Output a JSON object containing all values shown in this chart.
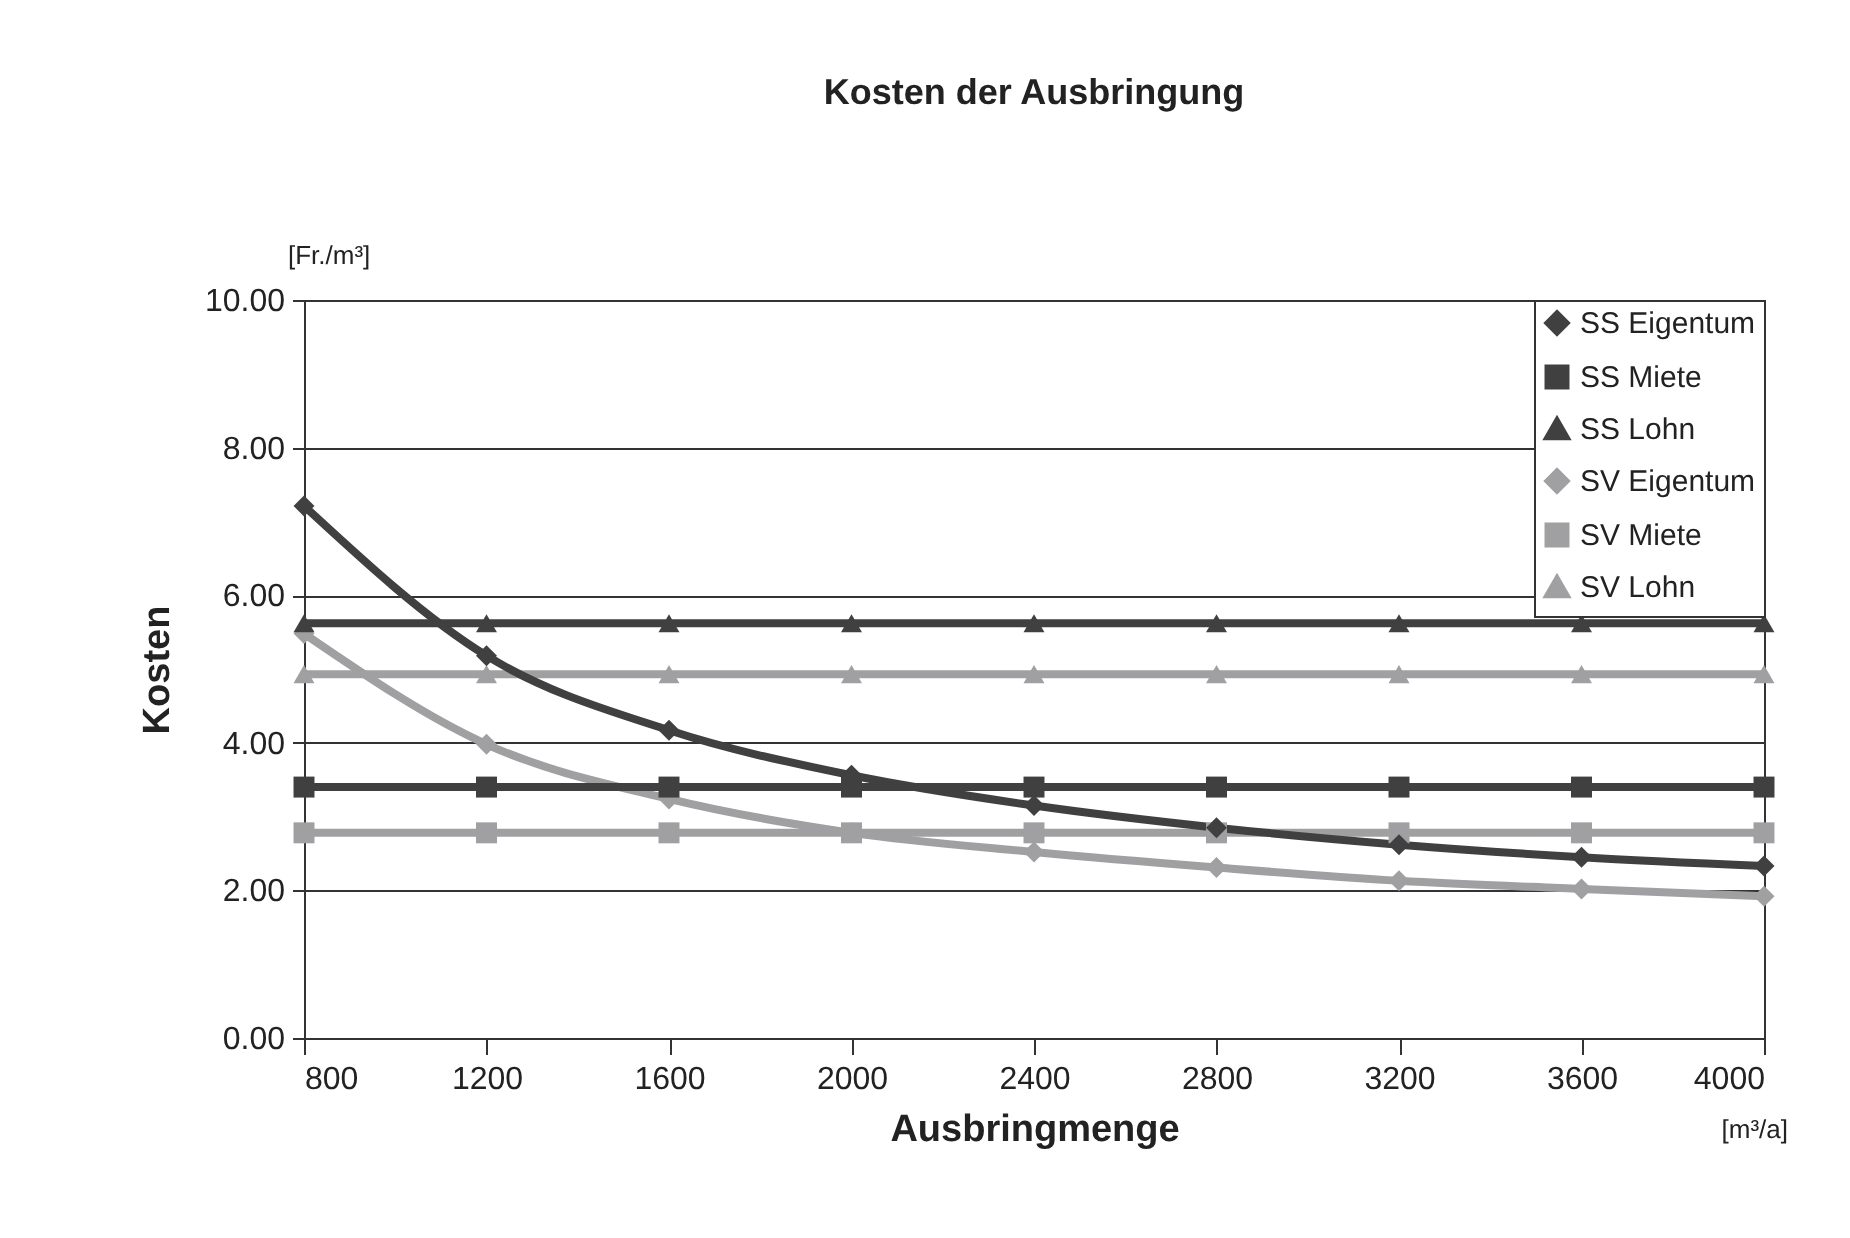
{
  "chart_data": {
    "type": "line",
    "title": "Kosten der Ausbringung",
    "xlabel": "Ausbringmenge",
    "ylabel": "Kosten",
    "annotations": [
      "[Fr./m³]",
      "[m³/a]"
    ],
    "x": [
      800,
      1200,
      1600,
      2000,
      2400,
      2800,
      3200,
      3600,
      4000
    ],
    "xlim": [
      800,
      4000
    ],
    "xticks": [
      800,
      1200,
      1600,
      2000,
      2400,
      2800,
      3200,
      3600,
      4000
    ],
    "ylim": [
      0,
      10
    ],
    "yticks": [
      {
        "value": 0,
        "label": "0.00"
      },
      {
        "value": 2,
        "label": "2.00"
      },
      {
        "value": 4,
        "label": "4.00"
      },
      {
        "value": 6,
        "label": "6.00"
      },
      {
        "value": 8,
        "label": "8.00"
      },
      {
        "value": 10,
        "label": "10.00"
      }
    ],
    "grid": "y",
    "legend": "top right",
    "line_style": "solid",
    "series": [
      {
        "name": "SS Eigentum",
        "color": "#404040",
        "marker": "diamond",
        "values": [
          7.21,
          5.18,
          4.17,
          3.56,
          3.15,
          2.85,
          2.62,
          2.45,
          2.33
        ]
      },
      {
        "name": "SS Miete",
        "color": "#404040",
        "marker": "square",
        "values": [
          3.4,
          3.4,
          3.4,
          3.4,
          3.4,
          3.4,
          3.4,
          3.4,
          3.4
        ]
      },
      {
        "name": "SS Lohn",
        "color": "#404040",
        "marker": "triangle",
        "values": [
          5.62,
          5.62,
          5.62,
          5.62,
          5.62,
          5.62,
          5.62,
          5.62,
          5.62
        ]
      },
      {
        "name": "SV Eigentum",
        "color": "#a0a0a2",
        "marker": "diamond",
        "values": [
          5.48,
          3.98,
          3.24,
          2.78,
          2.52,
          2.31,
          2.13,
          2.02,
          1.92
        ]
      },
      {
        "name": "SV Miete",
        "color": "#a0a0a2",
        "marker": "square",
        "values": [
          2.78,
          2.78,
          2.78,
          2.78,
          2.78,
          2.78,
          2.78,
          2.78,
          2.78
        ]
      },
      {
        "name": "SV Lohn",
        "color": "#a0a0a2",
        "marker": "triangle",
        "values": [
          4.93,
          4.93,
          4.93,
          4.93,
          4.93,
          4.93,
          4.93,
          4.93,
          4.93
        ]
      }
    ]
  }
}
